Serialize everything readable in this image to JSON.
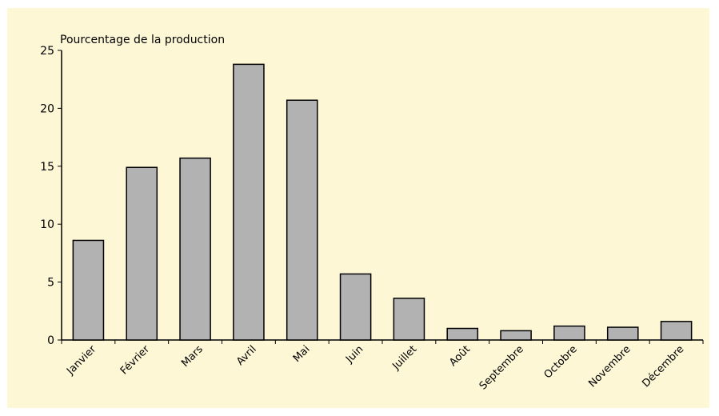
{
  "chart_data": {
    "type": "bar",
    "title": "",
    "ylabel": "Pourcentage de la production",
    "xlabel": "",
    "ylim": [
      0,
      25
    ],
    "yticks": [
      0,
      5,
      10,
      15,
      20,
      25
    ],
    "categories": [
      "Janvier",
      "Février",
      "Mars",
      "Avril",
      "Mai",
      "Juin",
      "Juillet",
      "Août",
      "Septembre",
      "Octobre",
      "Novembre",
      "Décembre"
    ],
    "values": [
      8.6,
      14.9,
      15.7,
      23.8,
      20.7,
      5.7,
      3.6,
      1.0,
      0.8,
      1.2,
      1.1,
      1.6
    ],
    "colors": {
      "background": "#fdf7d6",
      "bar_fill": "#b2b2b2",
      "bar_stroke": "#000000"
    },
    "grid": false,
    "legend": "none"
  }
}
